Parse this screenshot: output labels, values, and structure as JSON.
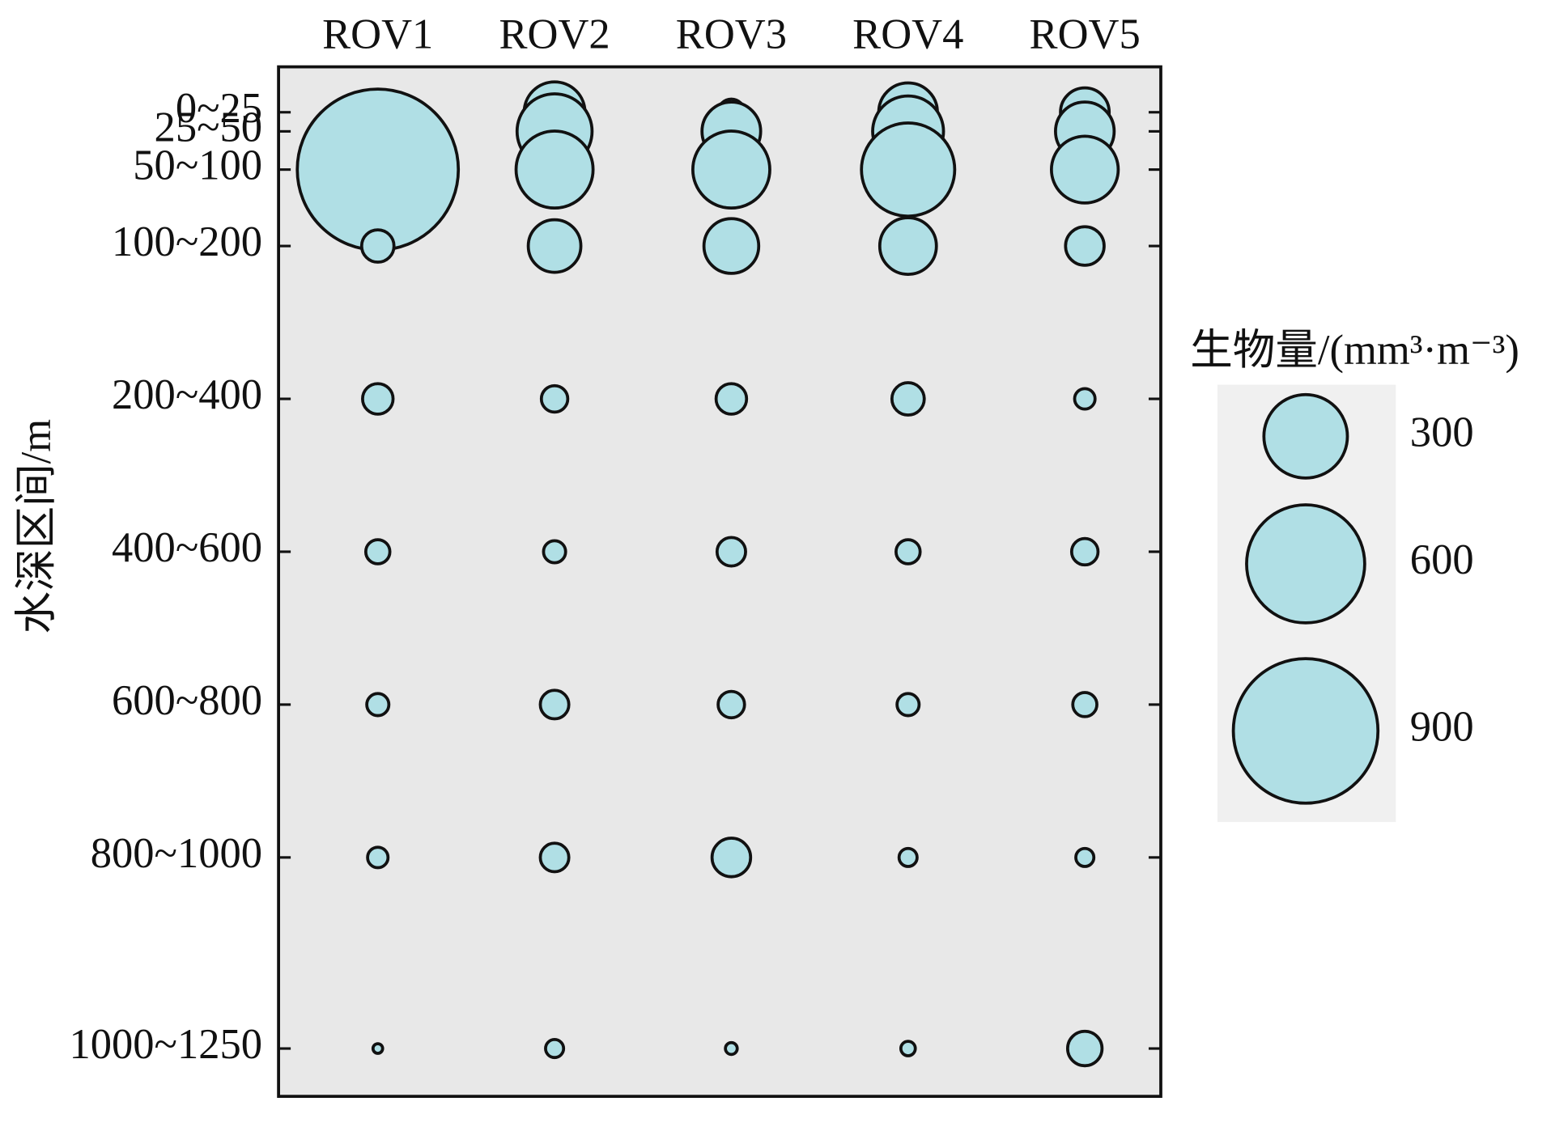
{
  "chart_data": {
    "type": "bubble",
    "y_label": "水深区间/m",
    "y_categories": [
      "0~25",
      "25~50",
      "50~100",
      "100~200",
      "200~400",
      "400~600",
      "600~800",
      "800~1000",
      "1000~1250"
    ],
    "color": "#b0dfe5",
    "series": [
      {
        "name": "ROV1",
        "values": [
          null,
          null,
          1116,
          45,
          40,
          25,
          21,
          18,
          4
        ]
      },
      {
        "name": "ROV2",
        "values": [
          159,
          242,
          255,
          119,
          30,
          21,
          35,
          35,
          14
        ]
      },
      {
        "name": "ROV3",
        "values": [
          30,
          148,
          255,
          129,
          40,
          35,
          30,
          64,
          6
        ]
      },
      {
        "name": "ROV4",
        "values": [
          148,
          216,
          374,
          138,
          45,
          25,
          21,
          14,
          9
        ]
      },
      {
        "name": "ROV5",
        "values": [
          102,
          148,
          192,
          64,
          18,
          30,
          25,
          14,
          51
        ]
      }
    ],
    "size_legend": {
      "title": "生物量/(mm³·m⁻³)",
      "values": [
        300,
        600,
        900
      ]
    }
  }
}
